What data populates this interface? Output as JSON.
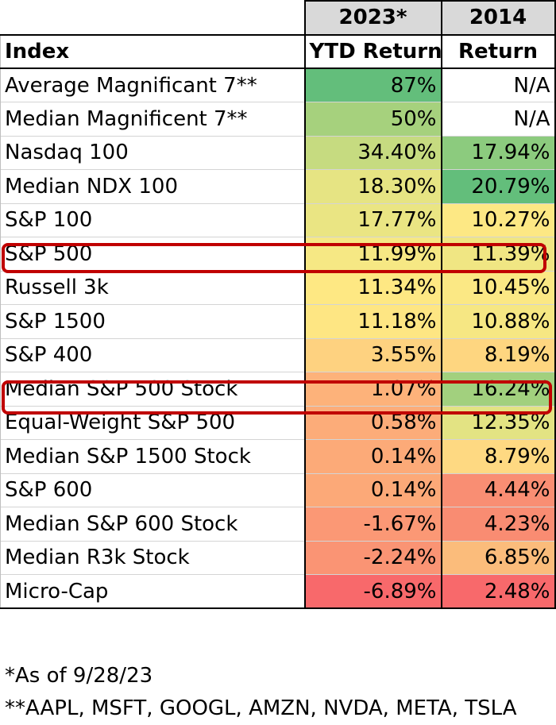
{
  "table": {
    "header_years": [
      "2023*",
      "2014"
    ],
    "header_labels": [
      "Index",
      "YTD Return",
      "Return"
    ],
    "rows": [
      {
        "name": "Average Magnificant 7**",
        "ytd": "87%",
        "ret": "N/A",
        "ytd_color": "#63be7b",
        "ret_color": "#ffffff"
      },
      {
        "name": "Median Magnificent 7**",
        "ytd": "50%",
        "ret": "N/A",
        "ytd_color": "#a6d17d",
        "ret_color": "#ffffff"
      },
      {
        "name": "Nasdaq 100",
        "ytd": "34.40%",
        "ret": "17.94%",
        "ytd_color": "#c6db80",
        "ret_color": "#8ccb7e"
      },
      {
        "name": "Median NDX 100",
        "ytd": "18.30%",
        "ret": "20.79%",
        "ytd_color": "#e6e483",
        "ret_color": "#63be7b"
      },
      {
        "name": "S&P 100",
        "ytd": "17.77%",
        "ret": "10.27%",
        "ytd_color": "#eae583",
        "ret_color": "#fde884"
      },
      {
        "name": "S&P 500",
        "ytd": "11.99%",
        "ret": "11.39%",
        "ytd_color": "#f6e884",
        "ret_color": "#f0e683"
      },
      {
        "name": "Russell 3k",
        "ytd": "11.34%",
        "ret": "10.45%",
        "ytd_color": "#fee883",
        "ret_color": "#fbe884"
      },
      {
        "name": "S&P 1500",
        "ytd": "11.18%",
        "ret": "10.88%",
        "ytd_color": "#fee683",
        "ret_color": "#f6e783"
      },
      {
        "name": "S&P 400",
        "ytd": "3.55%",
        "ret": "8.19%",
        "ytd_color": "#fed280",
        "ret_color": "#fed680"
      },
      {
        "name": "Median S&P 500 Stock",
        "ytd": "1.07%",
        "ret": "16.24%",
        "ytd_color": "#fdb27a",
        "ret_color": "#a2d07e"
      },
      {
        "name": "Equal-Weight S&P 500",
        "ytd": "0.58%",
        "ret": "12.35%",
        "ytd_color": "#fcac79",
        "ret_color": "#e3e383"
      },
      {
        "name": "Median S&P 1500 Stock",
        "ytd": "0.14%",
        "ret": "8.79%",
        "ytd_color": "#fcaa78",
        "ret_color": "#fed982"
      },
      {
        "name": "S&P 600",
        "ytd": "0.14%",
        "ret": "4.44%",
        "ytd_color": "#fca978",
        "ret_color": "#f98e73"
      },
      {
        "name": "Median S&P 600 Stock",
        "ytd": "-1.67%",
        "ret": "4.23%",
        "ytd_color": "#fb9875",
        "ret_color": "#f98c72"
      },
      {
        "name": "Median R3k Stock",
        "ytd": "-2.24%",
        "ret": "6.85%",
        "ytd_color": "#fa9474",
        "ret_color": "#fbbc7b"
      },
      {
        "name": "Micro-Cap",
        "ytd": "-6.89%",
        "ret": "2.48%",
        "ytd_color": "#f8696b",
        "ret_color": "#f8696b"
      }
    ]
  },
  "highlight_color": "#c00000",
  "footnotes": [
    "*As of 9/28/23",
    "**AAPL, MSFT, GOOGL, AMZN, NVDA, META, TSLA"
  ]
}
